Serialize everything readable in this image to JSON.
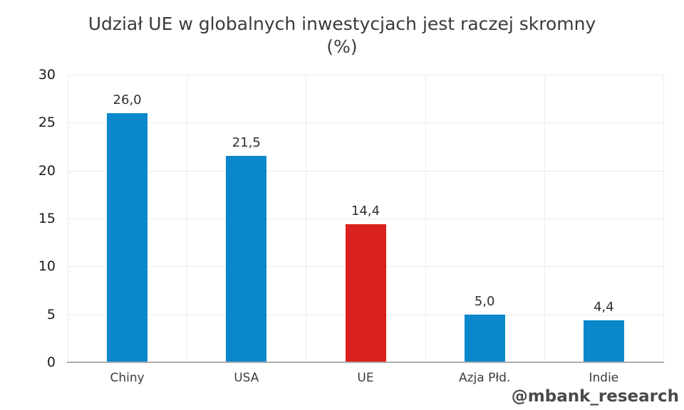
{
  "header": {
    "title_line1": "Udział UE w globalnych inwestycjach jest raczej skromny",
    "title_line2": "(%)"
  },
  "watermark": "@mbank_research",
  "colors": {
    "bar_default": "#0b88cb",
    "bar_highlight": "#da211d",
    "gridline": "#eaeaea",
    "axis_line": "#adadad",
    "title_text": "#3b3b3b",
    "tick_text": "#1a1a1a",
    "category_text": "#3c3c3c",
    "watermark_text": "#4a4a4a"
  },
  "chart_data": {
    "type": "bar",
    "title": "Udział UE w globalnych inwestycjach jest raczej skromny (%)",
    "categories": [
      "Chiny",
      "USA",
      "UE",
      "Azja Płd.",
      "Indie"
    ],
    "values": [
      26.0,
      21.5,
      14.4,
      5.0,
      4.4
    ],
    "value_labels": [
      "26,0",
      "21,5",
      "14,4",
      "5,0",
      "4,4"
    ],
    "bar_colors": [
      "#0b88cb",
      "#0b88cb",
      "#da211d",
      "#0b88cb",
      "#0b88cb"
    ],
    "highlighted_category": "UE",
    "xlabel": "",
    "ylabel": "",
    "ylim": [
      0,
      30
    ],
    "yticks": [
      0,
      5,
      10,
      15,
      20,
      25,
      30
    ],
    "ytick_labels": [
      "0",
      "5",
      "10",
      "15",
      "20",
      "25",
      "30"
    ],
    "grid": true,
    "legend": false
  }
}
